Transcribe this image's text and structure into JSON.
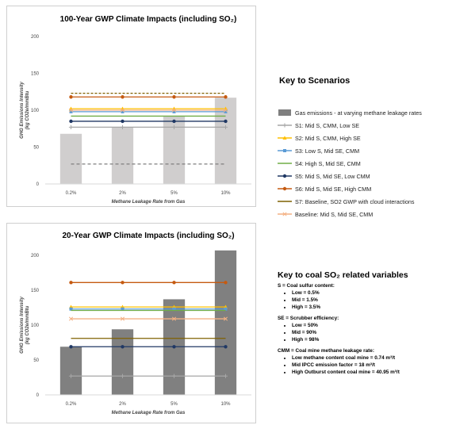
{
  "key_scenarios": {
    "title": "Key to Scenarios",
    "items": [
      {
        "label": "Gas emissions - at varying methane leakage rates",
        "color": "#7f7f7f",
        "style": "bar"
      },
      {
        "label": "S1: Mid S, CMM, Low SE",
        "color": "#a6a6a6",
        "style": "line-plus"
      },
      {
        "label": "S2: Mid S, CMM, High SE",
        "color": "#ffc000",
        "style": "line-triangle"
      },
      {
        "label": "S3: Low S, Mid SE, CMM",
        "color": "#5b9bd5",
        "style": "line-square"
      },
      {
        "label": "S4: High S, Mid SE, CMM",
        "color": "#70ad47",
        "style": "line"
      },
      {
        "label": "S5: Mid S, Mid SE, Low CMM",
        "color": "#203864",
        "style": "line-circle"
      },
      {
        "label": "S6: Mid S, Mid SE, High CMM",
        "color": "#c55a11",
        "style": "line-circle"
      },
      {
        "label": "S7: Baseline,  SO2 GWP with cloud interactions",
        "color": "#7f6000",
        "style": "line"
      },
      {
        "label": "Baseline: Mid S, Mid SE, CMM",
        "color": "#f4b183",
        "style": "line-x"
      }
    ]
  },
  "key_coal": {
    "title": "Key to coal SO₂ related variables",
    "sections": [
      {
        "heading": "S = Coal sulfur content:",
        "items": [
          "Low = 0.5%",
          "Mid = 1.5%",
          "High = 3.5%"
        ]
      },
      {
        "heading": "SE = Scrubber efficiency:",
        "items": [
          "Low = 50%",
          "Mid = 90%",
          "High = 98%"
        ]
      },
      {
        "heading": "CMM = Coal mine methane leakage rate:",
        "items": [
          "Low methane content coal mine = 0.74 m³/t",
          "Mid IPCC emission factor = 18 m³/t",
          "High Outburst content coal mine = 40.95 m³/t"
        ]
      }
    ]
  },
  "chart_data": [
    {
      "type": "bar",
      "title": "100-Year GWP Climate Impacts (including SO₂)",
      "xlabel": "Methane Leakage Rate from Gas",
      "ylabel_lines": [
        "GHG Emissions Intensity",
        "(kg CO2e/mmBtu"
      ],
      "categories": [
        "0.2%",
        "2%",
        "5%",
        "10%"
      ],
      "ylim": [
        0,
        200
      ],
      "yticks": [
        0,
        50,
        100,
        150,
        200
      ],
      "bar_color": "#d0cece",
      "bars": [
        68,
        77,
        92,
        117
      ],
      "series": [
        {
          "color": "#a6a6a6",
          "marker": "plus",
          "dash": "",
          "values": [
            77,
            77,
            77,
            77
          ]
        },
        {
          "color": "#ffc000",
          "marker": "triangle",
          "dash": "",
          "values": [
            102,
            102,
            102,
            102
          ]
        },
        {
          "color": "#5b9bd5",
          "marker": "square",
          "dash": "",
          "values": [
            98,
            98,
            98,
            98
          ]
        },
        {
          "color": "#70ad47",
          "marker": "none",
          "dash": "",
          "values": [
            92,
            92,
            92,
            92
          ]
        },
        {
          "color": "#203864",
          "marker": "circle",
          "dash": "",
          "values": [
            85,
            85,
            85,
            85
          ]
        },
        {
          "color": "#c55a11",
          "marker": "circle",
          "dash": "",
          "values": [
            118,
            118,
            118,
            118
          ]
        },
        {
          "color": "#7f6000",
          "marker": "none",
          "dash": "3,2",
          "values": [
            123,
            123,
            123,
            123
          ]
        },
        {
          "color": "#f4b183",
          "marker": "x",
          "dash": "",
          "values": [
            100,
            100,
            100,
            100
          ]
        },
        {
          "color": "#7f7f7f",
          "marker": "none",
          "dash": "4,3",
          "values": [
            27,
            27,
            27,
            27
          ]
        }
      ]
    },
    {
      "type": "bar",
      "title": "20-Year GWP Climate Impacts (including SO₂)",
      "xlabel": "Methane Leakage Rate from Gas",
      "ylabel_lines": [
        "GHG Emissions Intensity",
        "(kg CO2e/mmBtu"
      ],
      "categories": [
        "0.2%",
        "2%",
        "5%",
        "10%"
      ],
      "ylim": [
        0,
        200
      ],
      "yticks": [
        0,
        50,
        100,
        150,
        200
      ],
      "bar_color": "#808080",
      "bars": [
        69,
        94,
        137,
        207
      ],
      "series": [
        {
          "color": "#a6a6a6",
          "marker": "plus",
          "dash": "",
          "values": [
            27,
            27,
            27,
            27
          ]
        },
        {
          "color": "#ffc000",
          "marker": "triangle",
          "dash": "",
          "values": [
            126,
            126,
            126,
            126
          ]
        },
        {
          "color": "#5b9bd5",
          "marker": "square",
          "dash": "",
          "values": [
            123,
            123,
            123,
            123
          ]
        },
        {
          "color": "#70ad47",
          "marker": "none",
          "dash": "",
          "values": [
            121,
            121,
            121,
            121
          ]
        },
        {
          "color": "#203864",
          "marker": "circle",
          "dash": "",
          "values": [
            69,
            69,
            69,
            69
          ]
        },
        {
          "color": "#c55a11",
          "marker": "circle",
          "dash": "",
          "values": [
            161,
            161,
            161,
            161
          ]
        },
        {
          "color": "#7f6000",
          "marker": "none",
          "dash": "",
          "values": [
            81,
            81,
            81,
            81
          ]
        },
        {
          "color": "#f4b183",
          "marker": "x",
          "dash": "",
          "values": [
            109,
            109,
            109,
            109
          ]
        }
      ]
    }
  ]
}
